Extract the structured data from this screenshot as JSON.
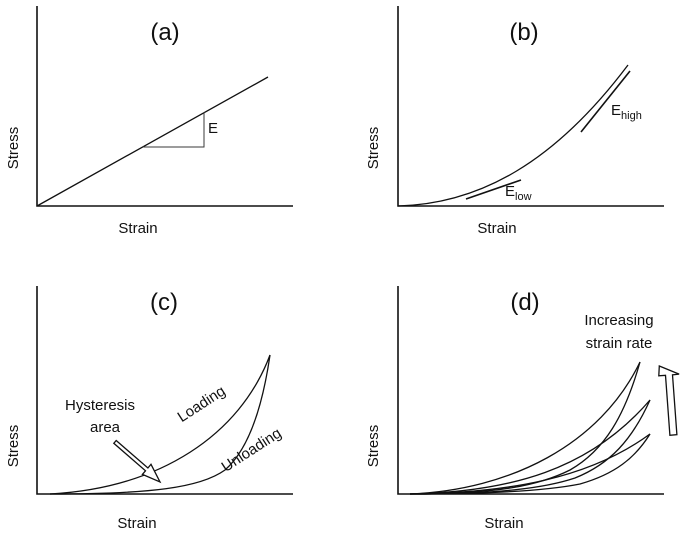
{
  "panels": [
    {
      "label": "(a)",
      "xlabel": "Strain",
      "ylabel": "Stress",
      "annotations": {
        "modulus": "E"
      }
    },
    {
      "label": "(b)",
      "xlabel": "Strain",
      "ylabel": "Stress",
      "annotations": {
        "low_base": "E",
        "low_sub": "low",
        "high_base": "E",
        "high_sub": "high"
      }
    },
    {
      "label": "(c)",
      "xlabel": "Strain",
      "ylabel": "Stress",
      "annotations": {
        "hysteresis_line1": "Hysteresis",
        "hysteresis_line2": "area",
        "loading": "Loading",
        "unloading": "Unloading"
      }
    },
    {
      "label": "(d)",
      "xlabel": "Strain",
      "ylabel": "Stress",
      "annotations": {
        "rate_line1": "Increasing",
        "rate_line2": "strain rate"
      }
    }
  ]
}
